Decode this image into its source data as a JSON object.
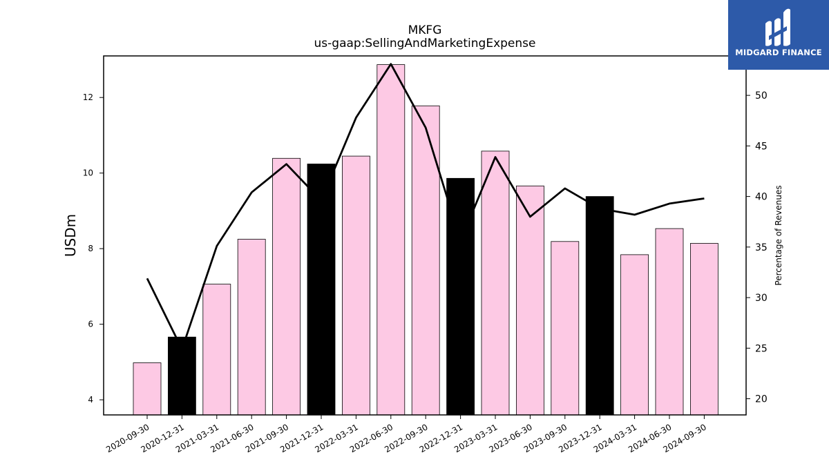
{
  "chart_data": {
    "type": "bar",
    "title": "MKFG",
    "subtitle": "us-gaap:SellingAndMarketingExpense",
    "ylabel": "USDm",
    "ylabel_right": "Percentage of Revenues",
    "ylim": [
      3.6,
      13.1
    ],
    "ylim_right": [
      18.4,
      53.9
    ],
    "yticks": [
      4,
      6,
      8,
      10,
      12
    ],
    "yticks_right": [
      20,
      25,
      30,
      35,
      40,
      45,
      50
    ],
    "categories": [
      "2020-09-30",
      "2020-12-31",
      "2021-03-31",
      "2021-06-30",
      "2021-09-30",
      "2021-12-31",
      "2022-03-31",
      "2022-06-30",
      "2022-09-30",
      "2022-12-31",
      "2023-03-31",
      "2023-06-30",
      "2023-09-30",
      "2023-12-31",
      "2024-03-31",
      "2024-06-30",
      "2024-09-30"
    ],
    "series": [
      {
        "type": "bar",
        "axis": "left",
        "values": [
          4.98,
          5.66,
          7.06,
          8.25,
          10.39,
          10.24,
          10.45,
          12.87,
          11.78,
          9.86,
          10.58,
          9.66,
          8.19,
          9.38,
          7.84,
          8.53,
          8.14
        ],
        "colors": [
          "#fdc9e4",
          "#000000",
          "#fdc9e4",
          "#fdc9e4",
          "#fdc9e4",
          "#000000",
          "#fdc9e4",
          "#fdc9e4",
          "#fdc9e4",
          "#000000",
          "#fdc9e4",
          "#fdc9e4",
          "#fdc9e4",
          "#000000",
          "#fdc9e4",
          "#fdc9e4",
          "#fdc9e4"
        ]
      },
      {
        "type": "line",
        "axis": "right",
        "color": "#000000",
        "values": [
          31.9,
          24.9,
          35.1,
          40.4,
          43.2,
          39.6,
          47.8,
          53.1,
          46.8,
          35.6,
          43.9,
          38.0,
          40.8,
          38.8,
          38.2,
          39.3,
          39.8
        ]
      }
    ],
    "grid": false,
    "legend": "none"
  },
  "logo": {
    "text": "MIDGARD FINANCE",
    "bg_color": "#2d5aa9"
  }
}
